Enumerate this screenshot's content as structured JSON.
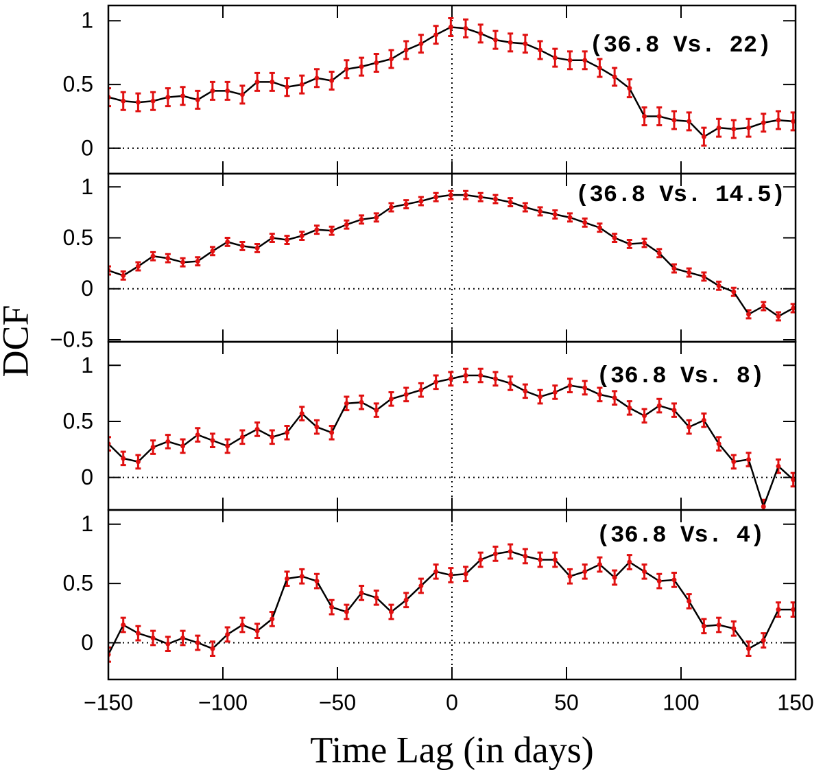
{
  "ylabel": "DCF",
  "chart_data": [
    {
      "type": "line",
      "annotation": "(36.8 Vs. 22)",
      "x": [
        -150,
        -143.5,
        -137,
        -130.5,
        -124,
        -117.5,
        -111,
        -104.5,
        -98,
        -91.5,
        -85,
        -78.5,
        -72,
        -65.5,
        -59,
        -52.5,
        -46,
        -39.5,
        -33,
        -26.5,
        -20,
        -13.5,
        -7,
        -0.5,
        6,
        12.5,
        19,
        25.5,
        32,
        38.5,
        45,
        51.5,
        58,
        64.5,
        71,
        77.5,
        84,
        90.5,
        97,
        103.5,
        110,
        116.5,
        123,
        129.5,
        136,
        142.5,
        149
      ],
      "values": [
        0.4,
        0.37,
        0.36,
        0.37,
        0.4,
        0.41,
        0.38,
        0.45,
        0.45,
        0.42,
        0.52,
        0.52,
        0.48,
        0.5,
        0.55,
        0.53,
        0.62,
        0.64,
        0.67,
        0.7,
        0.77,
        0.82,
        0.89,
        0.95,
        0.94,
        0.9,
        0.85,
        0.83,
        0.82,
        0.77,
        0.71,
        0.69,
        0.69,
        0.63,
        0.56,
        0.47,
        0.25,
        0.25,
        0.22,
        0.21,
        0.09,
        0.16,
        0.15,
        0.16,
        0.2,
        0.22,
        0.21
      ],
      "errors": [
        0.07,
        0.07,
        0.07,
        0.07,
        0.07,
        0.07,
        0.07,
        0.07,
        0.07,
        0.07,
        0.07,
        0.07,
        0.07,
        0.07,
        0.07,
        0.07,
        0.07,
        0.07,
        0.07,
        0.07,
        0.07,
        0.07,
        0.07,
        0.07,
        0.07,
        0.07,
        0.07,
        0.07,
        0.07,
        0.07,
        0.07,
        0.07,
        0.07,
        0.07,
        0.07,
        0.07,
        0.07,
        0.07,
        0.07,
        0.07,
        0.07,
        0.07,
        0.07,
        0.07,
        0.07,
        0.07,
        0.07
      ],
      "color": "#e01010",
      "line_color": "#000000",
      "xlim": [
        -150,
        150
      ],
      "ylim": [
        -0.2,
        1.12
      ],
      "yticks": [
        0,
        0.5,
        1
      ]
    },
    {
      "type": "line",
      "annotation": "(36.8 Vs. 14.5)",
      "x": [
        -150,
        -143.5,
        -137,
        -130.5,
        -124,
        -117.5,
        -111,
        -104.5,
        -98,
        -91.5,
        -85,
        -78.5,
        -72,
        -65.5,
        -59,
        -52.5,
        -46,
        -39.5,
        -33,
        -26.5,
        -20,
        -13.5,
        -7,
        -0.5,
        6,
        12.5,
        19,
        25.5,
        32,
        38.5,
        45,
        51.5,
        58,
        64.5,
        71,
        77.5,
        84,
        90.5,
        97,
        103.5,
        110,
        116.5,
        123,
        129.5,
        136,
        142.5,
        149
      ],
      "values": [
        0.18,
        0.13,
        0.22,
        0.32,
        0.3,
        0.26,
        0.27,
        0.37,
        0.46,
        0.42,
        0.4,
        0.5,
        0.48,
        0.52,
        0.58,
        0.57,
        0.63,
        0.68,
        0.7,
        0.8,
        0.83,
        0.86,
        0.9,
        0.92,
        0.92,
        0.9,
        0.88,
        0.85,
        0.8,
        0.76,
        0.73,
        0.7,
        0.65,
        0.6,
        0.5,
        0.44,
        0.45,
        0.35,
        0.2,
        0.16,
        0.12,
        0.03,
        -0.03,
        -0.25,
        -0.17,
        -0.27,
        -0.19
      ],
      "errors": [
        0.04,
        0.04,
        0.04,
        0.04,
        0.04,
        0.04,
        0.04,
        0.04,
        0.04,
        0.04,
        0.04,
        0.04,
        0.04,
        0.04,
        0.04,
        0.04,
        0.04,
        0.04,
        0.04,
        0.04,
        0.04,
        0.04,
        0.04,
        0.04,
        0.04,
        0.04,
        0.04,
        0.04,
        0.04,
        0.04,
        0.04,
        0.04,
        0.04,
        0.04,
        0.04,
        0.04,
        0.04,
        0.04,
        0.04,
        0.04,
        0.04,
        0.04,
        0.04,
        0.04,
        0.04,
        0.04,
        0.04
      ],
      "color": "#e01010",
      "line_color": "#000000",
      "xlim": [
        -150,
        150
      ],
      "ylim": [
        -0.52,
        1.13
      ],
      "yticks": [
        {
          "value": -0.5,
          "label": "−0.5"
        },
        0,
        0.5,
        1
      ]
    },
    {
      "type": "line",
      "annotation": "(36.8 Vs. 8)",
      "x": [
        -150,
        -143.5,
        -137,
        -130.5,
        -124,
        -117.5,
        -111,
        -104.5,
        -98,
        -91.5,
        -85,
        -78.5,
        -72,
        -65.5,
        -59,
        -52.5,
        -46,
        -39.5,
        -33,
        -26.5,
        -20,
        -13.5,
        -7,
        -0.5,
        6,
        12.5,
        19,
        25.5,
        32,
        38.5,
        45,
        51.5,
        58,
        64.5,
        71,
        77.5,
        84,
        90.5,
        97,
        103.5,
        110,
        116.5,
        123,
        129.5,
        136,
        142.5,
        149
      ],
      "values": [
        0.3,
        0.17,
        0.14,
        0.27,
        0.32,
        0.28,
        0.38,
        0.33,
        0.28,
        0.36,
        0.43,
        0.36,
        0.4,
        0.57,
        0.45,
        0.4,
        0.66,
        0.67,
        0.6,
        0.7,
        0.74,
        0.78,
        0.85,
        0.88,
        0.91,
        0.91,
        0.88,
        0.84,
        0.77,
        0.72,
        0.76,
        0.82,
        0.8,
        0.74,
        0.71,
        0.62,
        0.55,
        0.64,
        0.6,
        0.45,
        0.51,
        0.3,
        0.14,
        0.16,
        -0.26,
        0.1,
        -0.02
      ],
      "errors": [
        0.06,
        0.06,
        0.06,
        0.06,
        0.06,
        0.06,
        0.06,
        0.06,
        0.06,
        0.06,
        0.06,
        0.06,
        0.06,
        0.06,
        0.06,
        0.06,
        0.06,
        0.06,
        0.06,
        0.06,
        0.06,
        0.06,
        0.06,
        0.06,
        0.06,
        0.06,
        0.06,
        0.06,
        0.06,
        0.06,
        0.06,
        0.06,
        0.06,
        0.06,
        0.06,
        0.06,
        0.06,
        0.06,
        0.06,
        0.06,
        0.06,
        0.06,
        0.06,
        0.06,
        0.06,
        0.06,
        0.06
      ],
      "color": "#e01010",
      "line_color": "#000000",
      "xlim": [
        -150,
        150
      ],
      "ylim": [
        -0.29,
        1.21
      ],
      "yticks": [
        0,
        0.5,
        1
      ]
    },
    {
      "type": "line",
      "annotation": "(36.8 Vs. 4)",
      "xlabel": "Time Lag (in days)",
      "x": [
        -150,
        -143.5,
        -137,
        -130.5,
        -124,
        -117.5,
        -111,
        -104.5,
        -98,
        -91.5,
        -85,
        -78.5,
        -72,
        -65.5,
        -59,
        -52.5,
        -46,
        -39.5,
        -33,
        -26.5,
        -20,
        -13.5,
        -7,
        -0.5,
        6,
        12.5,
        19,
        25.5,
        32,
        38.5,
        45,
        51.5,
        58,
        64.5,
        71,
        77.5,
        84,
        90.5,
        97,
        103.5,
        110,
        116.5,
        123,
        129.5,
        136,
        142.5,
        149
      ],
      "values": [
        -0.1,
        0.15,
        0.08,
        0.04,
        -0.01,
        0.04,
        0.0,
        -0.05,
        0.07,
        0.15,
        0.1,
        0.2,
        0.54,
        0.56,
        0.52,
        0.3,
        0.26,
        0.42,
        0.38,
        0.26,
        0.36,
        0.48,
        0.6,
        0.57,
        0.58,
        0.7,
        0.75,
        0.77,
        0.73,
        0.7,
        0.7,
        0.56,
        0.6,
        0.66,
        0.55,
        0.68,
        0.6,
        0.52,
        0.53,
        0.35,
        0.14,
        0.15,
        0.12,
        -0.05,
        0.02,
        0.28,
        0.28
      ],
      "errors": [
        0.06,
        0.06,
        0.06,
        0.06,
        0.06,
        0.06,
        0.06,
        0.06,
        0.06,
        0.06,
        0.06,
        0.06,
        0.06,
        0.06,
        0.06,
        0.06,
        0.06,
        0.06,
        0.06,
        0.06,
        0.06,
        0.06,
        0.06,
        0.06,
        0.06,
        0.06,
        0.06,
        0.06,
        0.06,
        0.06,
        0.06,
        0.06,
        0.06,
        0.06,
        0.06,
        0.06,
        0.06,
        0.06,
        0.06,
        0.06,
        0.06,
        0.06,
        0.06,
        0.06,
        0.06,
        0.06,
        0.06
      ],
      "color": "#e01010",
      "line_color": "#000000",
      "xlim": [
        -150,
        150
      ],
      "ylim": [
        -0.31,
        1.12
      ],
      "yticks": [
        0,
        0.5,
        1
      ],
      "xticks": [
        {
          "value": -150,
          "label": "−150"
        },
        {
          "value": -100,
          "label": "−100"
        },
        {
          "value": -50,
          "label": "−50"
        },
        0,
        50,
        100,
        150
      ]
    }
  ]
}
